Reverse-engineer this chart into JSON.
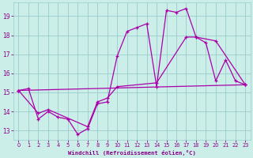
{
  "bg_color": "#cceee8",
  "line_color": "#aa00aa",
  "grid_color": "#aaddcc",
  "xlabel": "Windchill (Refroidissement éolien,°C)",
  "xlabel_color": "#880088",
  "tick_color": "#880088",
  "xlim": [
    -0.5,
    23.5
  ],
  "ylim": [
    12.5,
    19.7
  ],
  "yticks": [
    13,
    14,
    15,
    16,
    17,
    18,
    19
  ],
  "xticks": [
    0,
    1,
    2,
    3,
    4,
    5,
    6,
    7,
    8,
    9,
    10,
    11,
    12,
    13,
    14,
    15,
    16,
    17,
    18,
    19,
    20,
    21,
    22,
    23
  ],
  "line1_x": [
    0,
    1,
    2,
    3,
    4,
    5,
    6,
    7,
    8,
    9,
    10,
    11,
    12,
    13,
    14,
    15,
    16,
    17,
    18,
    19,
    20,
    21,
    22,
    23
  ],
  "line1_y": [
    15.1,
    15.2,
    13.6,
    14.0,
    13.7,
    13.6,
    12.8,
    13.1,
    14.4,
    14.5,
    16.9,
    18.2,
    18.4,
    18.6,
    15.3,
    19.3,
    19.2,
    19.4,
    17.9,
    17.6,
    15.6,
    16.7,
    15.6,
    15.4
  ],
  "line2_x": [
    0,
    23
  ],
  "line2_y": [
    15.1,
    15.4
  ],
  "line3_x": [
    0,
    2,
    3,
    7,
    8,
    9,
    10,
    14,
    17,
    18,
    20,
    23
  ],
  "line3_y": [
    15.1,
    13.9,
    14.1,
    13.2,
    14.5,
    14.7,
    15.3,
    15.5,
    17.9,
    17.9,
    17.7,
    15.4
  ]
}
